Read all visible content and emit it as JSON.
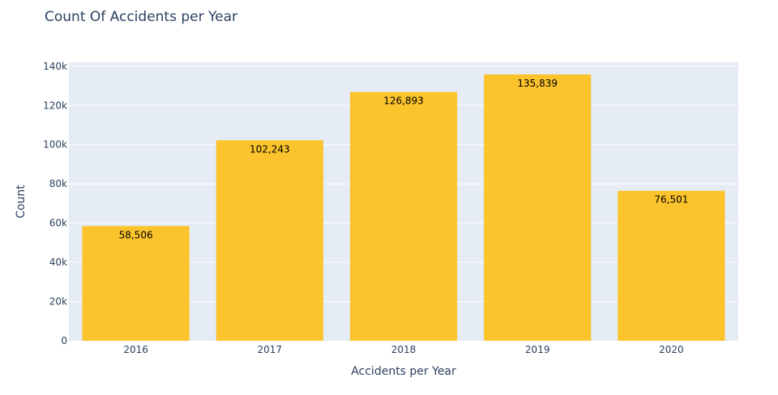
{
  "chart_data": {
    "type": "bar",
    "title": "Count Of Accidents per Year",
    "xlabel": "Accidents per Year",
    "ylabel": "Count",
    "categories": [
      "2016",
      "2017",
      "2018",
      "2019",
      "2020"
    ],
    "values": [
      58506,
      102243,
      126893,
      135839,
      76501
    ],
    "data_labels": [
      "58,506",
      "102,243",
      "126,893",
      "135,839",
      "76,501"
    ],
    "ylim": [
      0,
      142000
    ],
    "yticks": [
      0,
      20000,
      40000,
      60000,
      80000,
      100000,
      120000,
      140000
    ],
    "ytick_labels": [
      "0",
      "20k",
      "40k",
      "60k",
      "80k",
      "100k",
      "120k",
      "140k"
    ],
    "grid": true,
    "colors": {
      "bar": "#fbc32c",
      "plot_background": "#e5ecf6",
      "gridline": "#ffffff",
      "text": "#2a3f5f"
    }
  }
}
